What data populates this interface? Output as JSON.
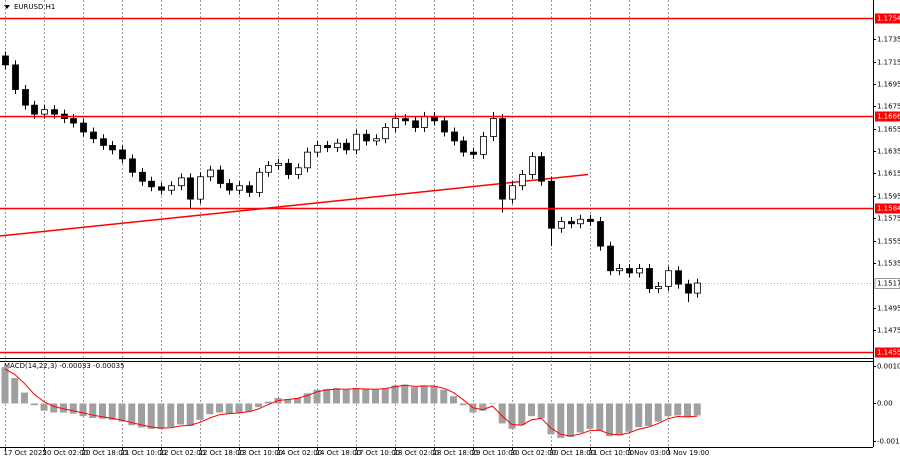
{
  "chart_data": [
    {
      "type": "candlestick",
      "title": "EURUSD,H1",
      "categories": [
        "17 Oct 2025",
        null,
        null,
        null,
        "20 Oct 02:00",
        null,
        null,
        null,
        "20 Oct 18:00",
        null,
        null,
        null,
        "21 Oct 10:00",
        null,
        null,
        null,
        "22 Oct 02:00",
        null,
        null,
        null,
        "22 Oct 18:00",
        null,
        null,
        null,
        "23 Oct 10:00",
        null,
        null,
        null,
        "24 Oct 02:00",
        null,
        null,
        null,
        "24 Oct 18:00",
        null,
        null,
        null,
        "27 Oct 10:00",
        null,
        null,
        null,
        "28 Oct 02:00",
        null,
        null,
        null,
        "28 Oct 18:00",
        null,
        null,
        null,
        "29 Oct 10:00",
        null,
        null,
        null,
        "30 Oct 02:00",
        null,
        null,
        null,
        "30 Oct 18:00",
        null,
        null,
        null,
        "31 Oct 10:00",
        null,
        null,
        null,
        "3 Nov 03:00",
        null,
        null,
        null,
        "3 Nov 19:00",
        null,
        null,
        null
      ],
      "open": [
        1.172,
        1.1712,
        1.169,
        1.1676,
        1.1668,
        1.1672,
        1.1668,
        1.1664,
        1.166,
        1.1652,
        1.1646,
        1.164,
        1.1636,
        1.1628,
        1.1616,
        1.1608,
        1.1603,
        1.16,
        1.1604,
        1.1611,
        1.1592,
        1.1612,
        1.1618,
        1.1606,
        1.16,
        1.1604,
        1.1598,
        1.1616,
        1.1622,
        1.1624,
        1.1614,
        1.162,
        1.1634,
        1.164,
        1.1638,
        1.1642,
        1.1636,
        1.165,
        1.1644,
        1.1646,
        1.1656,
        1.1664,
        1.1662,
        1.1656,
        1.1666,
        1.1662,
        1.1652,
        1.1644,
        1.1634,
        1.1632,
        1.1648,
        1.1664,
        1.1592,
        1.1604,
        1.1614,
        1.163,
        1.1608,
        1.1566,
        1.1572,
        1.157,
        1.1574,
        1.1572,
        1.155,
        1.1528,
        1.153,
        1.1526,
        1.153,
        1.1512,
        1.1514,
        1.1528,
        1.1516,
        1.1508
      ],
      "high": [
        1.1724,
        1.1716,
        1.1694,
        1.168,
        1.1676,
        1.1676,
        1.1672,
        1.1668,
        1.1664,
        1.1656,
        1.165,
        1.1644,
        1.164,
        1.1632,
        1.162,
        1.1612,
        1.1607,
        1.1608,
        1.1615,
        1.1615,
        1.1616,
        1.1622,
        1.1622,
        1.161,
        1.1608,
        1.1608,
        1.162,
        1.1626,
        1.1628,
        1.1628,
        1.1624,
        1.1638,
        1.1644,
        1.1644,
        1.1646,
        1.1646,
        1.1654,
        1.1654,
        1.165,
        1.166,
        1.1668,
        1.1668,
        1.1666,
        1.167,
        1.167,
        1.1666,
        1.1656,
        1.1648,
        1.1638,
        1.1652,
        1.167,
        1.1668,
        1.1608,
        1.1618,
        1.1634,
        1.1634,
        1.1612,
        1.1576,
        1.1576,
        1.1578,
        1.1578,
        1.1576,
        1.1554,
        1.1534,
        1.1534,
        1.1534,
        1.1534,
        1.1518,
        1.1532,
        1.1532,
        1.152,
        1.1521
      ],
      "low": [
        1.1708,
        1.1686,
        1.1672,
        1.1664,
        1.1664,
        1.1664,
        1.166,
        1.1656,
        1.1648,
        1.1642,
        1.1636,
        1.1632,
        1.1624,
        1.1612,
        1.1604,
        1.1599,
        1.1596,
        1.1596,
        1.16,
        1.1584,
        1.1588,
        1.1608,
        1.1602,
        1.1596,
        1.1596,
        1.1594,
        1.1594,
        1.1612,
        1.1618,
        1.161,
        1.161,
        1.1616,
        1.163,
        1.1634,
        1.1634,
        1.1632,
        1.1632,
        1.164,
        1.164,
        1.1642,
        1.1652,
        1.1658,
        1.1652,
        1.1652,
        1.1658,
        1.1648,
        1.164,
        1.163,
        1.1628,
        1.1628,
        1.1644,
        1.158,
        1.1588,
        1.16,
        1.161,
        1.1604,
        1.155,
        1.1562,
        1.1566,
        1.1566,
        1.1568,
        1.1546,
        1.1524,
        1.1524,
        1.1522,
        1.1522,
        1.1508,
        1.1508,
        1.151,
        1.1512,
        1.15,
        1.1504
      ],
      "close": [
        1.1712,
        1.169,
        1.1676,
        1.1668,
        1.1672,
        1.1668,
        1.1664,
        1.166,
        1.1652,
        1.1646,
        1.164,
        1.1636,
        1.1628,
        1.1616,
        1.1608,
        1.1603,
        1.16,
        1.1604,
        1.1611,
        1.1592,
        1.1612,
        1.1618,
        1.1606,
        1.16,
        1.1604,
        1.1598,
        1.1616,
        1.1622,
        1.1624,
        1.1614,
        1.162,
        1.1634,
        1.164,
        1.1638,
        1.1642,
        1.1636,
        1.165,
        1.1644,
        1.1646,
        1.1656,
        1.1664,
        1.1662,
        1.1656,
        1.1666,
        1.1662,
        1.1652,
        1.1644,
        1.1634,
        1.1632,
        1.1648,
        1.1664,
        1.1592,
        1.1604,
        1.1614,
        1.163,
        1.1608,
        1.1566,
        1.1572,
        1.157,
        1.1574,
        1.1572,
        1.155,
        1.1528,
        1.153,
        1.1526,
        1.153,
        1.1512,
        1.1514,
        1.1528,
        1.1516,
        1.1508,
        1.1517
      ],
      "up_color": "#ffffff",
      "down_color": "#000000",
      "outline_color": "#000000",
      "ylim": [
        1.145,
        1.177
      ],
      "yticks": [
        1.1735,
        1.1715,
        1.1695,
        1.1675,
        1.1655,
        1.1635,
        1.1615,
        1.1595,
        1.1575,
        1.1555,
        1.1535,
        1.1495,
        1.1475
      ],
      "grid": true,
      "levels": [
        1.1754,
        1.1666,
        1.1584,
        1.1455
      ],
      "level_color": "#ff0000",
      "current_price": 1.1517,
      "trendline": {
        "x": [
          -0.5,
          59.8
        ],
        "y": [
          1.1559,
          1.1614
        ],
        "color": "#ff0000"
      }
    },
    {
      "type": "macd",
      "title": "MACD(14,22,3) -0.00033 -0.00035",
      "ylim": [
        -0.0012,
        0.00117
      ],
      "yticks": [
        0.00103,
        {
          "value": 0,
          "label": "0.00"
        },
        -0.00104
      ],
      "series": [
        {
          "style": "histogram",
          "color": "#a0a0a0",
          "values": [
            0.001,
            0.0007,
            0.0003,
            -5e-05,
            -0.0002,
            -0.00025,
            -0.00025,
            -0.00028,
            -0.00035,
            -0.0004,
            -0.00042,
            -0.00045,
            -0.0005,
            -0.0006,
            -0.00066,
            -0.0007,
            -0.0007,
            -0.00065,
            -0.00058,
            -0.00062,
            -0.00045,
            -0.0003,
            -0.00025,
            -0.00028,
            -0.00025,
            -0.00022,
            -0.0001,
            5e-05,
            0.00015,
            0.00012,
            0.00015,
            0.00028,
            0.00038,
            0.0004,
            0.00042,
            0.00038,
            0.00042,
            0.0004,
            0.00038,
            0.00042,
            0.0005,
            0.00052,
            0.00045,
            0.0005,
            0.00048,
            0.00038,
            0.0002,
            -5e-05,
            -0.00025,
            -0.0002,
            0,
            -0.00055,
            -0.0007,
            -0.0006,
            -0.00035,
            -0.0004,
            -0.00085,
            -0.00095,
            -0.00092,
            -0.0008,
            -0.0007,
            -0.00075,
            -0.0009,
            -0.00088,
            -0.00078,
            -0.00065,
            -0.00062,
            -0.0005,
            -0.00035,
            -0.00033,
            -0.00038,
            -0.00033
          ]
        },
        {
          "style": "line",
          "color": "#ff0000",
          "values": [
            0.00095,
            0.0008,
            0.00055,
            0.00025,
            5e-05,
            -8e-05,
            -0.00015,
            -0.0002,
            -0.00026,
            -0.00032,
            -0.00037,
            -0.00041,
            -0.00046,
            -0.00053,
            -0.00059,
            -0.00065,
            -0.00068,
            -0.00067,
            -0.00062,
            -0.0006,
            -0.00052,
            -0.0004,
            -0.00031,
            -0.00028,
            -0.00026,
            -0.00023,
            -0.00015,
            -3e-05,
            8e-05,
            0.00011,
            0.00014,
            0.00022,
            0.00032,
            0.00037,
            0.0004,
            0.00039,
            0.00041,
            0.0004,
            0.00039,
            0.00041,
            0.00046,
            0.0005,
            0.00047,
            0.00048,
            0.00048,
            0.00042,
            0.0003,
            0.0001,
            -0.00012,
            -0.00017,
            -7e-05,
            -0.00035,
            -0.00058,
            -0.0006,
            -0.00045,
            -0.00041,
            -0.00068,
            -0.00085,
            -0.0009,
            -0.00084,
            -0.00075,
            -0.00074,
            -0.00084,
            -0.00087,
            -0.00081,
            -0.00071,
            -0.00065,
            -0.00055,
            -0.00042,
            -0.00036,
            -0.00037,
            -0.00035
          ]
        }
      ]
    }
  ]
}
